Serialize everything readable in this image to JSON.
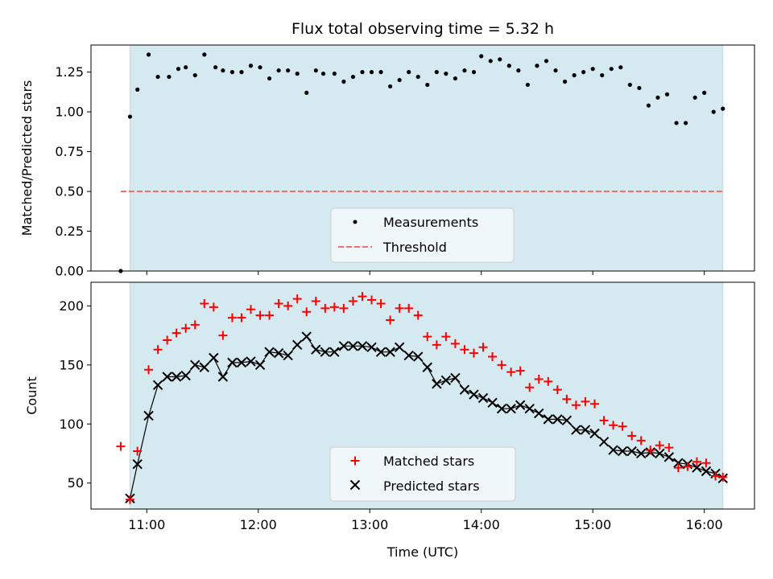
{
  "title": "Flux total observing time = 5.32 h",
  "chart_data": [
    {
      "type": "scatter",
      "ylabel": "Matched/Predicted stars",
      "ylim": [
        0,
        1.42
      ],
      "xlim": [
        "10:30",
        "16:27"
      ],
      "x_ticks": [
        "11:00",
        "12:00",
        "13:00",
        "14:00",
        "15:00",
        "16:00"
      ],
      "x_ticks_labeled": false,
      "y_ticks": [
        0.0,
        0.25,
        0.5,
        0.75,
        1.0,
        1.25
      ],
      "y_tick_labels": [
        "0.00",
        "0.25",
        "0.50",
        "0.75",
        "1.00",
        "1.25"
      ],
      "observing_window": [
        "10:51",
        "16:10"
      ],
      "legend_position": "bottom-center",
      "series": [
        {
          "name": "Measurements",
          "marker": "dot",
          "color": "#000000",
          "x": [
            "10:46",
            "10:51",
            "10:55",
            "11:01",
            "11:06",
            "11:12",
            "11:17",
            "11:21",
            "11:26",
            "11:31",
            "11:37",
            "11:41",
            "11:46",
            "11:51",
            "11:56",
            "12:01",
            "12:06",
            "12:11",
            "12:16",
            "12:21",
            "12:26",
            "12:31",
            "12:35",
            "12:41",
            "12:46",
            "12:51",
            "12:56",
            "13:01",
            "13:06",
            "13:11",
            "13:16",
            "13:21",
            "13:26",
            "13:31",
            "13:36",
            "13:41",
            "13:46",
            "13:51",
            "13:56",
            "14:00",
            "14:05",
            "14:10",
            "14:15",
            "14:20",
            "14:25",
            "14:30",
            "14:35",
            "14:40",
            "14:45",
            "14:50",
            "14:55",
            "15:00",
            "15:05",
            "15:10",
            "15:15",
            "15:20",
            "15:25",
            "15:30",
            "15:35",
            "15:40",
            "15:45",
            "15:50",
            "15:55",
            "16:00",
            "16:05",
            "16:10"
          ],
          "y": [
            0.0,
            0.97,
            1.14,
            1.36,
            1.22,
            1.22,
            1.27,
            1.28,
            1.23,
            1.36,
            1.28,
            1.26,
            1.25,
            1.25,
            1.29,
            1.28,
            1.21,
            1.26,
            1.26,
            1.24,
            1.12,
            1.26,
            1.24,
            1.24,
            1.19,
            1.22,
            1.25,
            1.25,
            1.25,
            1.16,
            1.2,
            1.25,
            1.22,
            1.17,
            1.25,
            1.24,
            1.21,
            1.26,
            1.25,
            1.35,
            1.32,
            1.33,
            1.29,
            1.26,
            1.17,
            1.29,
            1.32,
            1.26,
            1.19,
            1.23,
            1.25,
            1.27,
            1.23,
            1.27,
            1.28,
            1.17,
            1.15,
            1.04,
            1.09,
            1.11,
            0.93,
            0.93,
            1.09,
            1.12,
            1.0,
            1.02
          ]
        },
        {
          "name": "Threshold",
          "line_style": "dashed",
          "color": "#f07070",
          "x": [
            "10:46",
            "16:10"
          ],
          "y": [
            0.5,
            0.5
          ]
        }
      ]
    },
    {
      "type": "scatter",
      "xlabel": "Time (UTC)",
      "ylabel": "Count",
      "ylim": [
        28,
        220
      ],
      "xlim": [
        "10:30",
        "16:27"
      ],
      "x_ticks": [
        "11:00",
        "12:00",
        "13:00",
        "14:00",
        "15:00",
        "16:00"
      ],
      "x_tick_labels": [
        "11:00",
        "12:00",
        "13:00",
        "14:00",
        "15:00",
        "16:00"
      ],
      "y_ticks": [
        50,
        100,
        150,
        200
      ],
      "y_tick_labels": [
        "50",
        "100",
        "150",
        "200"
      ],
      "observing_window": [
        "10:51",
        "16:10"
      ],
      "legend_position": "bottom-center",
      "series": [
        {
          "name": "Matched stars",
          "marker": "plus",
          "color": "#ff0000",
          "x": [
            "10:46",
            "10:51",
            "10:55",
            "11:01",
            "11:06",
            "11:11",
            "11:16",
            "11:21",
            "11:26",
            "11:31",
            "11:36",
            "11:41",
            "11:46",
            "11:51",
            "11:56",
            "12:01",
            "12:06",
            "12:11",
            "12:16",
            "12:21",
            "12:26",
            "12:31",
            "12:36",
            "12:41",
            "12:46",
            "12:51",
            "12:56",
            "13:01",
            "13:06",
            "13:11",
            "13:16",
            "13:21",
            "13:26",
            "13:31",
            "13:36",
            "13:41",
            "13:46",
            "13:51",
            "13:56",
            "14:01",
            "14:06",
            "14:11",
            "14:16",
            "14:21",
            "14:26",
            "14:31",
            "14:36",
            "14:41",
            "14:46",
            "14:51",
            "14:56",
            "15:01",
            "15:06",
            "15:11",
            "15:16",
            "15:21",
            "15:26",
            "15:31",
            "15:36",
            "15:41",
            "15:46",
            "15:51",
            "15:56",
            "16:01",
            "16:06",
            "16:10"
          ],
          "y": [
            81,
            36,
            77,
            146,
            163,
            171,
            177,
            181,
            184,
            202,
            199,
            175,
            190,
            190,
            197,
            192,
            192,
            202,
            200,
            206,
            195,
            204,
            198,
            199,
            198,
            204,
            208,
            205,
            202,
            188,
            198,
            198,
            192,
            174,
            167,
            174,
            168,
            163,
            160,
            165,
            157,
            150,
            144,
            145,
            131,
            138,
            136,
            129,
            121,
            116,
            119,
            117,
            103,
            99,
            98,
            90,
            86,
            78,
            82,
            80,
            63,
            64,
            68,
            67,
            56,
            55
          ]
        },
        {
          "name": "Predicted stars",
          "marker": "x",
          "color": "#000000",
          "x": [
            "10:51",
            "10:55",
            "11:01",
            "11:06",
            "11:11",
            "11:16",
            "11:21",
            "11:26",
            "11:31",
            "11:36",
            "11:41",
            "11:46",
            "11:51",
            "11:56",
            "12:01",
            "12:06",
            "12:11",
            "12:16",
            "12:21",
            "12:26",
            "12:31",
            "12:36",
            "12:41",
            "12:46",
            "12:51",
            "12:56",
            "13:01",
            "13:06",
            "13:11",
            "13:16",
            "13:21",
            "13:26",
            "13:31",
            "13:36",
            "13:41",
            "13:46",
            "13:51",
            "13:56",
            "14:01",
            "14:06",
            "14:11",
            "14:16",
            "14:21",
            "14:26",
            "14:31",
            "14:36",
            "14:41",
            "14:46",
            "14:51",
            "14:56",
            "15:01",
            "15:06",
            "15:11",
            "15:16",
            "15:21",
            "15:26",
            "15:31",
            "15:36",
            "15:41",
            "15:46",
            "15:51",
            "15:56",
            "16:01",
            "16:06",
            "16:10"
          ],
          "y": [
            37,
            66,
            107,
            133,
            140,
            140,
            141,
            150,
            148,
            156,
            140,
            152,
            152,
            153,
            150,
            161,
            160,
            158,
            167,
            174,
            163,
            161,
            161,
            166,
            166,
            166,
            165,
            161,
            161,
            165,
            158,
            157,
            148,
            134,
            137,
            139,
            129,
            125,
            122,
            118,
            113,
            113,
            116,
            113,
            109,
            104,
            104,
            103,
            95,
            95,
            92,
            85,
            78,
            77,
            77,
            75,
            76,
            75,
            72,
            67,
            66,
            63,
            60,
            58,
            54
          ]
        }
      ]
    }
  ],
  "colors": {
    "window_fill": "#d4eaf0",
    "window_edge": "#bcdce4",
    "matched": "#ff0000",
    "predicted": "#000000",
    "measurement": "#000000",
    "threshold": "#f07070",
    "legend_bg": "#f5f9fb"
  }
}
